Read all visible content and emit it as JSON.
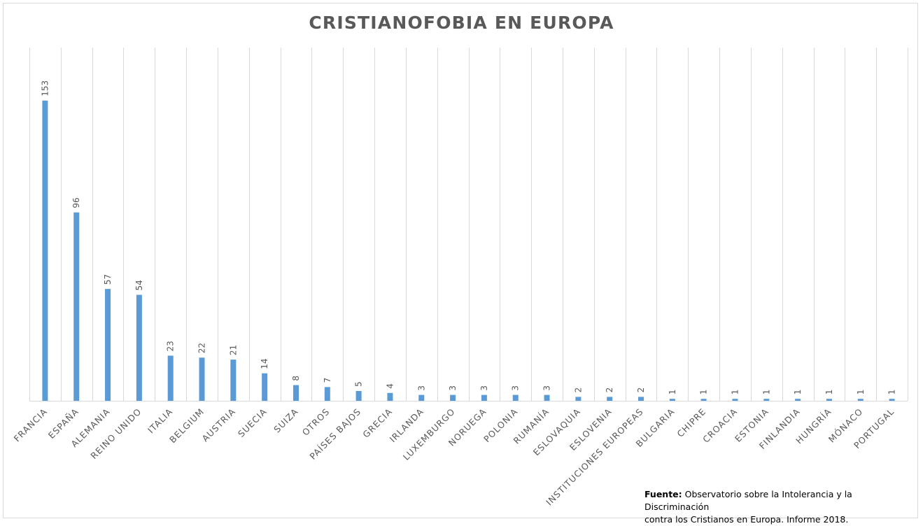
{
  "chart_data": {
    "type": "bar",
    "title": "CRISTIANOFOBIA EN EUROPA",
    "categories": [
      "FRANCIA",
      "ESPAÑA",
      "ALEMANIA",
      "REINO UNIDO",
      "ITALIA",
      "BELGIUM",
      "AUSTRIA",
      "SUECIA",
      "SUIZA",
      "OTROS",
      "PAÍSES BAJOS",
      "GRECIA",
      "IRLANDA",
      "LUXEMBURGO",
      "NORUEGA",
      "POLONIA",
      "RUMANÍA",
      "ESLOVAQUIA",
      "ESLOVENIA",
      "INSTITUCIONES EUROPEAS",
      "BULGARIA",
      "CHIPRE",
      "CROACIA",
      "ESTONIA",
      "FINLANDIA",
      "HUNGRÍA",
      "MÓNACO",
      "PORTUGAL"
    ],
    "values": [
      153,
      96,
      57,
      54,
      23,
      22,
      21,
      14,
      8,
      7,
      5,
      4,
      3,
      3,
      3,
      3,
      3,
      2,
      2,
      2,
      1,
      1,
      1,
      1,
      1,
      1,
      1,
      1
    ],
    "ylim": [
      0,
      180
    ],
    "grid": "vertical",
    "bar_color": "#5b9bd5",
    "data_labels": true
  },
  "source": {
    "label": "Fuente:",
    "text_line1": " Observatorio sobre la Intolerancia y la Discriminación",
    "text_line2": "contra los Cristianos en Europa. Informe 2018."
  }
}
